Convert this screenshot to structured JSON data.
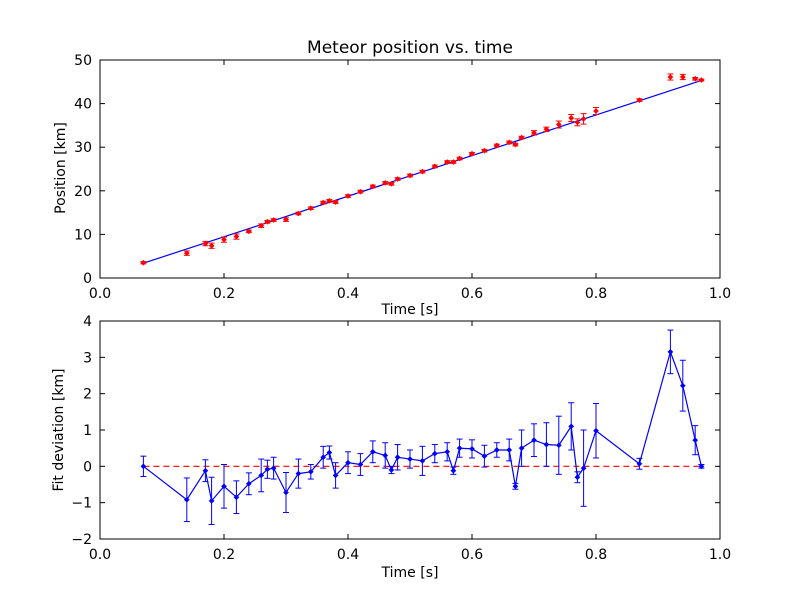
{
  "chart_data": [
    {
      "type": "scatter",
      "title": "Meteor position vs. time",
      "xlabel": "Time [s]",
      "ylabel": "Position [km]",
      "xlim": [
        0.0,
        1.0
      ],
      "ylim": [
        0,
        50
      ],
      "xticks": [
        "0.0",
        "0.2",
        "0.4",
        "0.6",
        "0.8",
        "1.0"
      ],
      "yticks": [
        "0",
        "10",
        "20",
        "30",
        "40",
        "50"
      ],
      "colors": {
        "points": "#ff0000",
        "fit": "#0000ff"
      },
      "points": {
        "x": [
          0.07,
          0.14,
          0.17,
          0.18,
          0.2,
          0.22,
          0.24,
          0.26,
          0.27,
          0.28,
          0.3,
          0.32,
          0.34,
          0.36,
          0.37,
          0.38,
          0.4,
          0.42,
          0.44,
          0.46,
          0.47,
          0.48,
          0.5,
          0.52,
          0.54,
          0.56,
          0.57,
          0.58,
          0.6,
          0.62,
          0.64,
          0.66,
          0.67,
          0.68,
          0.7,
          0.72,
          0.74,
          0.76,
          0.77,
          0.78,
          0.8,
          0.87,
          0.92,
          0.94,
          0.96,
          0.97
        ],
        "y": [
          3.5,
          5.7,
          7.9,
          7.4,
          8.8,
          9.5,
          10.7,
          12.0,
          12.9,
          13.3,
          13.4,
          14.8,
          16.0,
          17.3,
          17.7,
          17.4,
          18.8,
          19.8,
          21.0,
          21.8,
          21.6,
          22.7,
          23.5,
          24.4,
          25.6,
          26.6,
          26.6,
          27.4,
          28.5,
          29.2,
          30.4,
          31.1,
          30.6,
          32.2,
          33.3,
          34.1,
          35.2,
          36.7,
          35.7,
          36.5,
          38.3,
          40.8,
          46.1,
          46.1,
          45.7,
          45.4
        ],
        "yerr": [
          0.25,
          0.5,
          0.5,
          0.6,
          0.6,
          0.6,
          0.3,
          0.4,
          0.3,
          0.3,
          0.4,
          0.3,
          0.3,
          0.3,
          0.3,
          0.3,
          0.3,
          0.3,
          0.3,
          0.3,
          0.3,
          0.3,
          0.3,
          0.3,
          0.3,
          0.3,
          0.3,
          0.3,
          0.3,
          0.3,
          0.3,
          0.3,
          0.3,
          0.3,
          0.5,
          0.5,
          0.8,
          0.8,
          0.8,
          1.2,
          0.8,
          0.3,
          0.7,
          0.6,
          0.3,
          0.2
        ]
      },
      "fit_line": {
        "x": [
          0.07,
          0.97
        ],
        "y": [
          3.4,
          45.3
        ]
      }
    },
    {
      "type": "line",
      "xlabel": "Time [s]",
      "ylabel": "Fit deviation [km]",
      "xlim": [
        0.0,
        1.0
      ],
      "ylim": [
        -2,
        4
      ],
      "xticks": [
        "0.0",
        "0.2",
        "0.4",
        "0.6",
        "0.8",
        "1.0"
      ],
      "yticks": [
        "−2",
        "−1",
        "0",
        "1",
        "2",
        "3",
        "4"
      ],
      "colors": {
        "series": "#0000ff",
        "zero_line": "#ff0000"
      },
      "zero_line": 0,
      "series": {
        "x": [
          0.07,
          0.14,
          0.17,
          0.18,
          0.2,
          0.22,
          0.24,
          0.26,
          0.27,
          0.28,
          0.3,
          0.32,
          0.34,
          0.36,
          0.37,
          0.38,
          0.4,
          0.42,
          0.44,
          0.46,
          0.47,
          0.48,
          0.5,
          0.52,
          0.54,
          0.56,
          0.57,
          0.58,
          0.6,
          0.62,
          0.64,
          0.66,
          0.67,
          0.68,
          0.7,
          0.72,
          0.74,
          0.76,
          0.77,
          0.78,
          0.8,
          0.87,
          0.92,
          0.94,
          0.96,
          0.97
        ],
        "y": [
          0.0,
          -0.92,
          -0.12,
          -0.95,
          -0.55,
          -0.85,
          -0.48,
          -0.25,
          -0.08,
          -0.05,
          -0.72,
          -0.2,
          -0.15,
          0.25,
          0.38,
          -0.25,
          0.1,
          0.05,
          0.4,
          0.3,
          -0.1,
          0.25,
          0.2,
          0.15,
          0.35,
          0.4,
          -0.12,
          0.5,
          0.48,
          0.28,
          0.45,
          0.45,
          -0.55,
          0.5,
          0.72,
          0.6,
          0.58,
          1.1,
          -0.3,
          -0.05,
          0.98,
          0.07,
          3.15,
          2.22,
          0.72,
          0.0
        ],
        "yerr": [
          0.28,
          0.6,
          0.3,
          0.65,
          0.6,
          0.45,
          0.3,
          0.45,
          0.25,
          0.3,
          0.55,
          0.4,
          0.2,
          0.3,
          0.18,
          0.35,
          0.3,
          0.3,
          0.3,
          0.35,
          0.1,
          0.35,
          0.25,
          0.4,
          0.25,
          0.25,
          0.1,
          0.25,
          0.25,
          0.3,
          0.2,
          0.3,
          0.08,
          0.5,
          0.45,
          0.6,
          0.8,
          0.65,
          0.15,
          1.05,
          0.75,
          0.15,
          0.6,
          0.7,
          0.4,
          0.05
        ]
      }
    }
  ]
}
